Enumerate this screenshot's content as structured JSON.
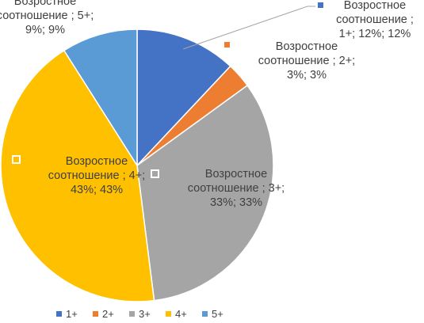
{
  "chart_data": {
    "type": "pie",
    "categories": [
      "1+",
      "2+",
      "3+",
      "4+",
      "5+"
    ],
    "values": [
      12,
      3,
      33,
      43,
      9
    ],
    "colors": [
      "#4472C4",
      "#ED7D31",
      "#A5A5A5",
      "#FFC000",
      "#5B9BD5"
    ],
    "series_name": "Возростное соотношение",
    "data_labels": [
      [
        "Возростное",
        "соотношение ;",
        "1+; 12%; 12%"
      ],
      [
        "Возростное",
        "соотношение ; 2+;",
        "3%; 3%"
      ],
      [
        "Возростное",
        "соотношение ; 3+;",
        "33%; 33%"
      ],
      [
        "Возростное",
        "соотношение ; 4+;",
        "43%; 43%"
      ],
      [
        "Возростное",
        "соотношение ; 5+;",
        "9%; 9%"
      ]
    ],
    "legend": {
      "position": "bottom",
      "entries": [
        "1+",
        "2+",
        "3+",
        "4+",
        "5+"
      ]
    }
  }
}
